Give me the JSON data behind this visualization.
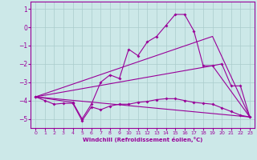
{
  "xlabel": "Windchill (Refroidissement éolien,°C)",
  "background_color": "#cce8e8",
  "grid_color": "#aacccc",
  "line_color": "#990099",
  "xlim": [
    -0.5,
    23.5
  ],
  "ylim": [
    -5.5,
    1.4
  ],
  "yticks": [
    1,
    0,
    -1,
    -2,
    -3,
    -4,
    -5
  ],
  "xticks": [
    0,
    1,
    2,
    3,
    4,
    5,
    6,
    7,
    8,
    9,
    10,
    11,
    12,
    13,
    14,
    15,
    16,
    17,
    18,
    19,
    20,
    21,
    22,
    23
  ],
  "series": [
    {
      "points": [
        [
          0,
          -3.8
        ],
        [
          1,
          -4.0
        ],
        [
          2,
          -4.2
        ],
        [
          3,
          -4.15
        ],
        [
          4,
          -4.15
        ],
        [
          5,
          -5.1
        ],
        [
          6,
          -4.35
        ],
        [
          7,
          -4.5
        ],
        [
          8,
          -4.3
        ],
        [
          9,
          -4.2
        ],
        [
          10,
          -4.2
        ],
        [
          11,
          -4.1
        ],
        [
          12,
          -4.05
        ],
        [
          13,
          -3.95
        ],
        [
          14,
          -3.9
        ],
        [
          15,
          -3.9
        ],
        [
          16,
          -4.0
        ],
        [
          17,
          -4.1
        ],
        [
          18,
          -4.15
        ],
        [
          19,
          -4.2
        ],
        [
          20,
          -4.4
        ],
        [
          21,
          -4.6
        ],
        [
          22,
          -4.8
        ],
        [
          23,
          -4.9
        ]
      ],
      "marker": true
    },
    {
      "points": [
        [
          0,
          -3.8
        ],
        [
          4,
          -4.1
        ],
        [
          5,
          -5.0
        ],
        [
          6,
          -4.2
        ],
        [
          7,
          -3.0
        ],
        [
          8,
          -2.6
        ],
        [
          9,
          -2.8
        ],
        [
          10,
          -1.2
        ],
        [
          11,
          -1.55
        ],
        [
          12,
          -0.8
        ],
        [
          13,
          -0.5
        ],
        [
          14,
          0.1
        ],
        [
          15,
          0.7
        ],
        [
          16,
          0.7
        ],
        [
          17,
          -0.2
        ],
        [
          18,
          -2.1
        ],
        [
          19,
          -2.1
        ],
        [
          20,
          -2.0
        ],
        [
          21,
          -3.2
        ],
        [
          22,
          -3.2
        ],
        [
          23,
          -4.9
        ]
      ],
      "marker": true
    },
    {
      "points": [
        [
          0,
          -3.8
        ],
        [
          23,
          -4.9
        ]
      ],
      "marker": false
    },
    {
      "points": [
        [
          0,
          -3.8
        ],
        [
          19,
          -0.5
        ],
        [
          23,
          -4.9
        ]
      ],
      "marker": false
    },
    {
      "points": [
        [
          0,
          -3.8
        ],
        [
          19,
          -2.1
        ],
        [
          23,
          -4.9
        ]
      ],
      "marker": false
    }
  ]
}
